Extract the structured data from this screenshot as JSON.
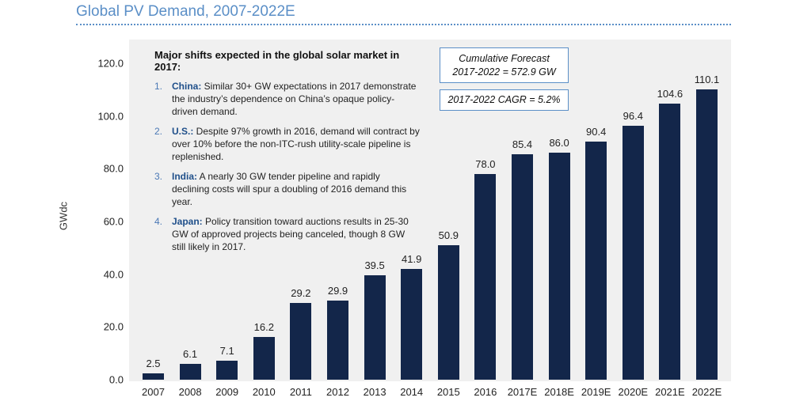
{
  "header": {
    "title": "Global PV Demand, 2007-2022E"
  },
  "notes": {
    "heading": "Major shifts expected in the global solar market in 2017:",
    "items": [
      {
        "num": "1.",
        "head": "China:",
        "text": " Similar 30+ GW expectations in 2017 demonstrate the industry’s dependence on China’s opaque policy-driven demand."
      },
      {
        "num": "2.",
        "head": "U.S.:",
        "text": " Despite 97% growth in 2016, demand will contract by over 10% before the non-ITC-rush utility-scale pipeline is replenished."
      },
      {
        "num": "3.",
        "head": "India:",
        "text": " A nearly 30 GW tender pipeline and rapidly declining costs will spur a doubling of 2016 demand this year."
      },
      {
        "num": "4.",
        "head": "Japan:",
        "text": " Policy transition toward auctions results in 25-30 GW of approved projects being canceled, though 8 GW still likely in 2017."
      }
    ]
  },
  "callouts": {
    "forecast_line1": "Cumulative Forecast",
    "forecast_line2": "2017-2022 = 572.9 GW",
    "cagr": "2017-2022 CAGR = 5.2%"
  },
  "chart_data": {
    "type": "bar",
    "title": "Global PV Demand, 2007-2022E",
    "xlabel": "",
    "ylabel": "GWdc",
    "ylim": [
      0,
      120
    ],
    "yticks": [
      "0.0",
      "20.0",
      "40.0",
      "60.0",
      "80.0",
      "100.0",
      "120.0"
    ],
    "grid": false,
    "categories": [
      "2007",
      "2008",
      "2009",
      "2010",
      "2011",
      "2012",
      "2013",
      "2014",
      "2015",
      "2016",
      "2017E",
      "2018E",
      "2019E",
      "2020E",
      "2021E",
      "2022E"
    ],
    "values": [
      2.5,
      6.1,
      7.1,
      16.2,
      29.2,
      29.9,
      39.5,
      41.9,
      50.9,
      78.0,
      85.4,
      86.0,
      90.4,
      96.4,
      104.6,
      110.1
    ],
    "value_labels": [
      "2.5",
      "6.1",
      "7.1",
      "16.2",
      "29.2",
      "29.9",
      "39.5",
      "41.9",
      "50.9",
      "78.0",
      "85.4",
      "86.0",
      "90.4",
      "96.4",
      "104.6",
      "110.1"
    ],
    "colors": {
      "bar": "#13264a",
      "title": "#5b8fc7",
      "plot_background": "#f0f0f0"
    }
  }
}
